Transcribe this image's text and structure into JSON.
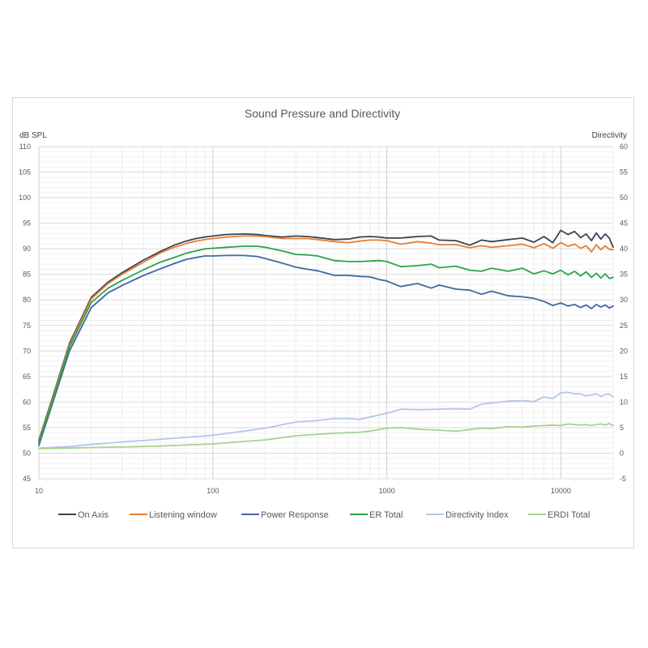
{
  "chart_data": {
    "type": "line",
    "title": "Sound Pressure and Directivity",
    "xlabel": "",
    "ylabel": "dB SPL",
    "y2label": "Directivity",
    "xscale": "log",
    "xlim": [
      10,
      20000
    ],
    "ylim": [
      45,
      110
    ],
    "y2lim": [
      -5,
      60
    ],
    "x_ticks": [
      10,
      100,
      1000,
      10000
    ],
    "y_ticks": [
      45,
      50,
      55,
      60,
      65,
      70,
      75,
      80,
      85,
      90,
      95,
      100,
      105,
      110
    ],
    "y2_ticks": [
      -5,
      0,
      5,
      10,
      15,
      20,
      25,
      30,
      35,
      40,
      45,
      50,
      55,
      60
    ],
    "grid": true,
    "legend_position": "bottom",
    "series": [
      {
        "name": "On Axis",
        "color": "#3c4352",
        "axis": "left",
        "x": [
          10,
          12,
          15,
          20,
          25,
          30,
          40,
          50,
          60,
          70,
          80,
          90,
          100,
          120,
          150,
          180,
          200,
          250,
          300,
          350,
          400,
          500,
          600,
          700,
          800,
          900,
          1000,
          1200,
          1500,
          1800,
          2000,
          2500,
          3000,
          3500,
          4000,
          5000,
          6000,
          7000,
          8000,
          9000,
          10000,
          11000,
          12000,
          13000,
          14000,
          15000,
          16000,
          17000,
          18000,
          19000,
          20000
        ],
        "y": [
          52.5,
          61,
          71.5,
          80.5,
          83.5,
          85.3,
          87.8,
          89.5,
          90.7,
          91.5,
          92,
          92.3,
          92.5,
          92.8,
          92.9,
          92.8,
          92.6,
          92.3,
          92.5,
          92.4,
          92.2,
          91.8,
          91.9,
          92.3,
          92.4,
          92.3,
          92.1,
          92.1,
          92.4,
          92.5,
          91.7,
          91.6,
          90.7,
          91.7,
          91.4,
          91.8,
          92.1,
          91.3,
          92.4,
          91.2,
          93.6,
          92.8,
          93.4,
          92.2,
          92.9,
          91.6,
          93.1,
          91.9,
          92.9,
          92.1,
          90.3
        ]
      },
      {
        "name": "Listening window",
        "color": "#e47f34",
        "axis": "left",
        "x": [
          10,
          12,
          15,
          20,
          25,
          30,
          40,
          50,
          60,
          70,
          80,
          90,
          100,
          120,
          150,
          180,
          200,
          250,
          300,
          350,
          400,
          500,
          600,
          700,
          800,
          900,
          1000,
          1200,
          1500,
          1800,
          2000,
          2500,
          3000,
          3500,
          4000,
          5000,
          6000,
          7000,
          8000,
          9000,
          10000,
          11000,
          12000,
          13000,
          14000,
          15000,
          16000,
          17000,
          18000,
          19000,
          20000
        ],
        "y": [
          52.2,
          60.7,
          71.2,
          80.2,
          83.2,
          85,
          87.4,
          89.2,
          90.3,
          91,
          91.5,
          91.8,
          92,
          92.3,
          92.5,
          92.5,
          92.4,
          92,
          92,
          92,
          91.8,
          91.4,
          91.2,
          91.5,
          91.7,
          91.7,
          91.6,
          90.9,
          91.4,
          91.1,
          90.8,
          90.8,
          90.2,
          90.6,
          90.3,
          90.6,
          90.9,
          90.2,
          91,
          90.1,
          91.2,
          90.5,
          90.9,
          90.1,
          90.6,
          89.4,
          90.8,
          89.8,
          90.6,
          89.9,
          89.8
        ]
      },
      {
        "name": "Power Response",
        "color": "#3f67a4",
        "axis": "left",
        "x": [
          10,
          12,
          15,
          20,
          25,
          30,
          40,
          50,
          60,
          70,
          80,
          90,
          100,
          120,
          150,
          180,
          200,
          250,
          300,
          350,
          400,
          500,
          600,
          700,
          800,
          900,
          1000,
          1200,
          1500,
          1800,
          2000,
          2500,
          3000,
          3500,
          4000,
          5000,
          6000,
          7000,
          8000,
          9000,
          10000,
          11000,
          12000,
          13000,
          14000,
          15000,
          16000,
          17000,
          18000,
          19000,
          20000
        ],
        "y": [
          51.5,
          59.8,
          70,
          78.5,
          81.4,
          82.8,
          84.8,
          86.1,
          87.1,
          87.9,
          88.3,
          88.6,
          88.6,
          88.7,
          88.7,
          88.5,
          88.1,
          87.2,
          86.4,
          86,
          85.7,
          84.8,
          84.8,
          84.6,
          84.5,
          84,
          83.7,
          82.6,
          83.2,
          82.3,
          82.9,
          82.1,
          81.9,
          81.1,
          81.7,
          80.8,
          80.6,
          80.3,
          79.7,
          78.9,
          79.4,
          78.8,
          79.1,
          78.5,
          79,
          78.3,
          79.1,
          78.6,
          79,
          78.4,
          78.8
        ]
      },
      {
        "name": "ER Total",
        "color": "#2ea34b",
        "axis": "left",
        "x": [
          10,
          12,
          15,
          20,
          25,
          30,
          40,
          50,
          60,
          70,
          80,
          90,
          100,
          120,
          150,
          180,
          200,
          250,
          300,
          350,
          400,
          500,
          600,
          700,
          800,
          900,
          1000,
          1200,
          1500,
          1800,
          2000,
          2500,
          3000,
          3500,
          4000,
          5000,
          6000,
          7000,
          8000,
          9000,
          10000,
          11000,
          12000,
          13000,
          14000,
          15000,
          16000,
          17000,
          18000,
          19000,
          20000
        ],
        "y": [
          52,
          60.3,
          70.8,
          79.5,
          82.3,
          83.8,
          85.9,
          87.4,
          88.3,
          89.1,
          89.6,
          90,
          90.1,
          90.3,
          90.5,
          90.5,
          90.3,
          89.6,
          88.9,
          88.8,
          88.6,
          87.7,
          87.5,
          87.5,
          87.6,
          87.7,
          87.5,
          86.5,
          86.7,
          87,
          86.3,
          86.6,
          85.8,
          85.6,
          86.2,
          85.6,
          86.2,
          85.1,
          85.7,
          85.1,
          85.8,
          84.9,
          85.6,
          84.7,
          85.5,
          84.4,
          85.2,
          84.3,
          85.1,
          84.2,
          84.4
        ]
      },
      {
        "name": "Directivity Index",
        "color": "#b4c6e7",
        "axis": "right",
        "x": [
          10,
          15,
          20,
          30,
          50,
          70,
          100,
          150,
          200,
          300,
          400,
          500,
          600,
          700,
          800,
          1000,
          1200,
          1500,
          2000,
          2500,
          3000,
          3500,
          4000,
          5000,
          6000,
          7000,
          8000,
          9000,
          10000,
          11000,
          12000,
          13000,
          14000,
          15000,
          16000,
          17000,
          18000,
          19000,
          20000
        ],
        "y": [
          1,
          1.3,
          1.7,
          2.2,
          2.7,
          3.1,
          3.5,
          4.3,
          4.9,
          6.1,
          6.4,
          6.8,
          6.8,
          6.6,
          7.1,
          7.8,
          8.6,
          8.5,
          8.6,
          8.7,
          8.6,
          9.6,
          9.8,
          10.2,
          10.3,
          10.1,
          11,
          10.7,
          11.8,
          11.9,
          11.6,
          11.6,
          11.2,
          11.4,
          11.6,
          11.1,
          11.5,
          11.6,
          11
        ]
      },
      {
        "name": "ERDI Total",
        "color": "#a9d18e",
        "axis": "right",
        "x": [
          10,
          15,
          20,
          30,
          50,
          70,
          100,
          150,
          200,
          300,
          400,
          500,
          600,
          700,
          800,
          1000,
          1200,
          1500,
          2000,
          2500,
          3000,
          3500,
          4000,
          5000,
          6000,
          7000,
          8000,
          9000,
          10000,
          11000,
          12000,
          13000,
          14000,
          15000,
          16000,
          17000,
          18000,
          19000,
          20000
        ],
        "y": [
          0.9,
          1,
          1.1,
          1.2,
          1.4,
          1.6,
          1.8,
          2.3,
          2.6,
          3.4,
          3.7,
          3.9,
          4,
          4.1,
          4.3,
          4.9,
          5,
          4.7,
          4.5,
          4.3,
          4.6,
          4.9,
          4.8,
          5.2,
          5.1,
          5.3,
          5.4,
          5.5,
          5.4,
          5.7,
          5.6,
          5.5,
          5.6,
          5.4,
          5.6,
          5.7,
          5.5,
          5.8,
          5.4
        ]
      }
    ]
  }
}
